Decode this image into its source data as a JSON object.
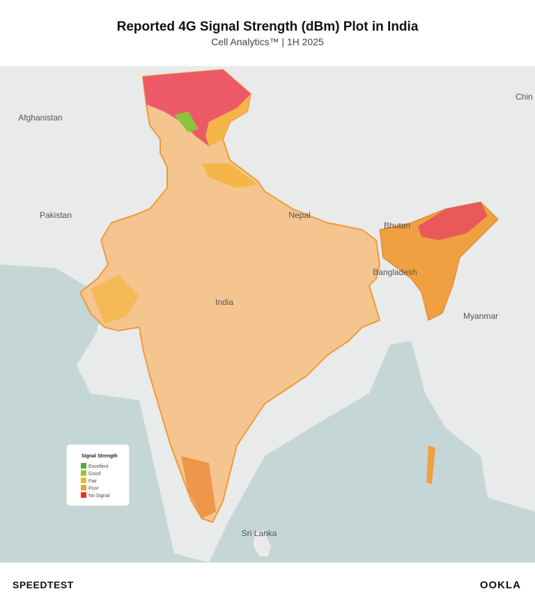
{
  "header": {
    "title": "Reported 4G Signal Strength (dBm) Plot in India",
    "subtitle": "Cell Analytics™ | 1H 2025"
  },
  "map": {
    "labels": [
      "Afghanistan",
      "Pakistan",
      "Nepal",
      "Bhutan",
      "Bangladesh",
      "India",
      "Myanmar",
      "Sri Lanka",
      "Chin"
    ]
  },
  "legend": {
    "title": "Signal Strength",
    "items": [
      {
        "label": "Excellent",
        "color": "#4daf2c"
      },
      {
        "label": "Good",
        "color": "#9cc22a"
      },
      {
        "label": "Fair",
        "color": "#e3c21c"
      },
      {
        "label": "Poor",
        "color": "#f2a12c"
      },
      {
        "label": "No Signal",
        "color": "#e8341c"
      }
    ]
  },
  "footer": {
    "left": "SPEEDTEST",
    "right": "OOKLA"
  }
}
